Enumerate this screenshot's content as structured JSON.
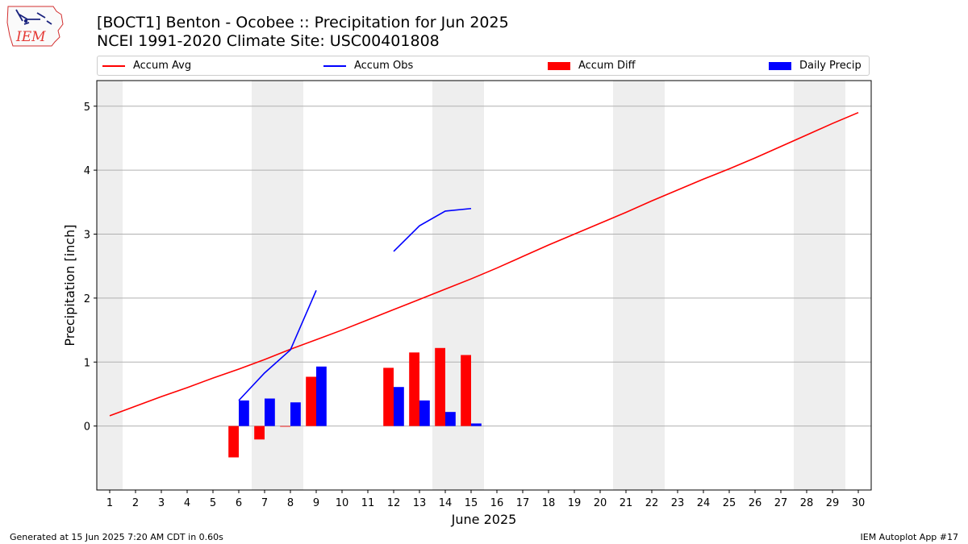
{
  "header": {
    "title_line1": "[BOCT1] Benton - Ocobee :: Precipitation for Jun 2025",
    "title_line2": "NCEI 1991-2020 Climate Site: USC00401808"
  },
  "logo": {
    "text": "IEM",
    "icon": "iem-iowa-logo"
  },
  "footer": {
    "left": "Generated at 15 Jun 2025 7:20 AM CDT in 0.60s",
    "right": "IEM Autoplot App #17"
  },
  "colors": {
    "avg": "#ff0000",
    "obs": "#0000ff",
    "diff": "#ff0000",
    "daily": "#0000ff",
    "weekend": "#eeeeee",
    "grid": "#b0b0b0"
  },
  "chart_data": {
    "type": "bar",
    "xlabel": "June 2025",
    "ylabel": "Precipitation [inch]",
    "xlim": [
      0.5,
      30.5
    ],
    "ylim": [
      -1.0,
      5.4
    ],
    "x_ticks": [
      1,
      2,
      3,
      4,
      5,
      6,
      7,
      8,
      9,
      10,
      11,
      12,
      13,
      14,
      15,
      16,
      17,
      18,
      19,
      20,
      21,
      22,
      23,
      24,
      25,
      26,
      27,
      28,
      29,
      30
    ],
    "y_ticks": [
      0,
      1,
      2,
      3,
      4,
      5
    ],
    "grid": "y",
    "weekend_days": [
      1,
      7,
      8,
      14,
      15,
      21,
      22,
      28,
      29
    ],
    "legend": {
      "placement": "top",
      "entries": [
        {
          "label": "Accum Avg",
          "marker": "line",
          "color": "#ff0000"
        },
        {
          "label": "Accum Obs",
          "marker": "line",
          "color": "#0000ff"
        },
        {
          "label": "Accum Diff",
          "marker": "box",
          "color": "#ff0000"
        },
        {
          "label": "Daily Precip",
          "marker": "box",
          "color": "#0000ff"
        }
      ]
    },
    "series": [
      {
        "name": "Accum Avg",
        "kind": "line",
        "color": "#ff0000",
        "x": [
          1,
          2,
          3,
          4,
          5,
          6,
          7,
          8,
          9,
          10,
          11,
          12,
          13,
          14,
          15,
          16,
          17,
          18,
          19,
          20,
          21,
          22,
          23,
          24,
          25,
          26,
          27,
          28,
          29,
          30
        ],
        "values": [
          0.16,
          0.31,
          0.46,
          0.6,
          0.75,
          0.89,
          1.04,
          1.2,
          1.35,
          1.5,
          1.66,
          1.82,
          1.98,
          2.14,
          2.3,
          2.47,
          2.65,
          2.83,
          3.0,
          3.17,
          3.34,
          3.52,
          3.69,
          3.86,
          4.02,
          4.19,
          4.37,
          4.55,
          4.73,
          4.9
        ]
      },
      {
        "name": "Accum Obs",
        "kind": "line",
        "color": "#0000ff",
        "segments": [
          {
            "x": [
              6,
              7,
              8,
              9
            ],
            "values": [
              0.4,
              0.83,
              1.19,
              2.12
            ]
          },
          {
            "x": [
              12,
              13,
              14,
              15
            ],
            "values": [
              2.73,
              3.13,
              3.36,
              3.4
            ]
          }
        ]
      },
      {
        "name": "Accum Diff",
        "kind": "bar",
        "color": "#ff0000",
        "offset": -0.2,
        "x": [
          6,
          7,
          8,
          9,
          12,
          13,
          14,
          15
        ],
        "values": [
          -0.49,
          -0.21,
          -0.01,
          0.77,
          0.91,
          1.15,
          1.22,
          1.11
        ]
      },
      {
        "name": "Daily Precip",
        "kind": "bar",
        "color": "#0000ff",
        "offset": 0.2,
        "x": [
          6,
          7,
          8,
          9,
          12,
          13,
          14,
          15
        ],
        "values": [
          0.4,
          0.43,
          0.37,
          0.93,
          0.61,
          0.4,
          0.22,
          0.04
        ]
      }
    ]
  }
}
